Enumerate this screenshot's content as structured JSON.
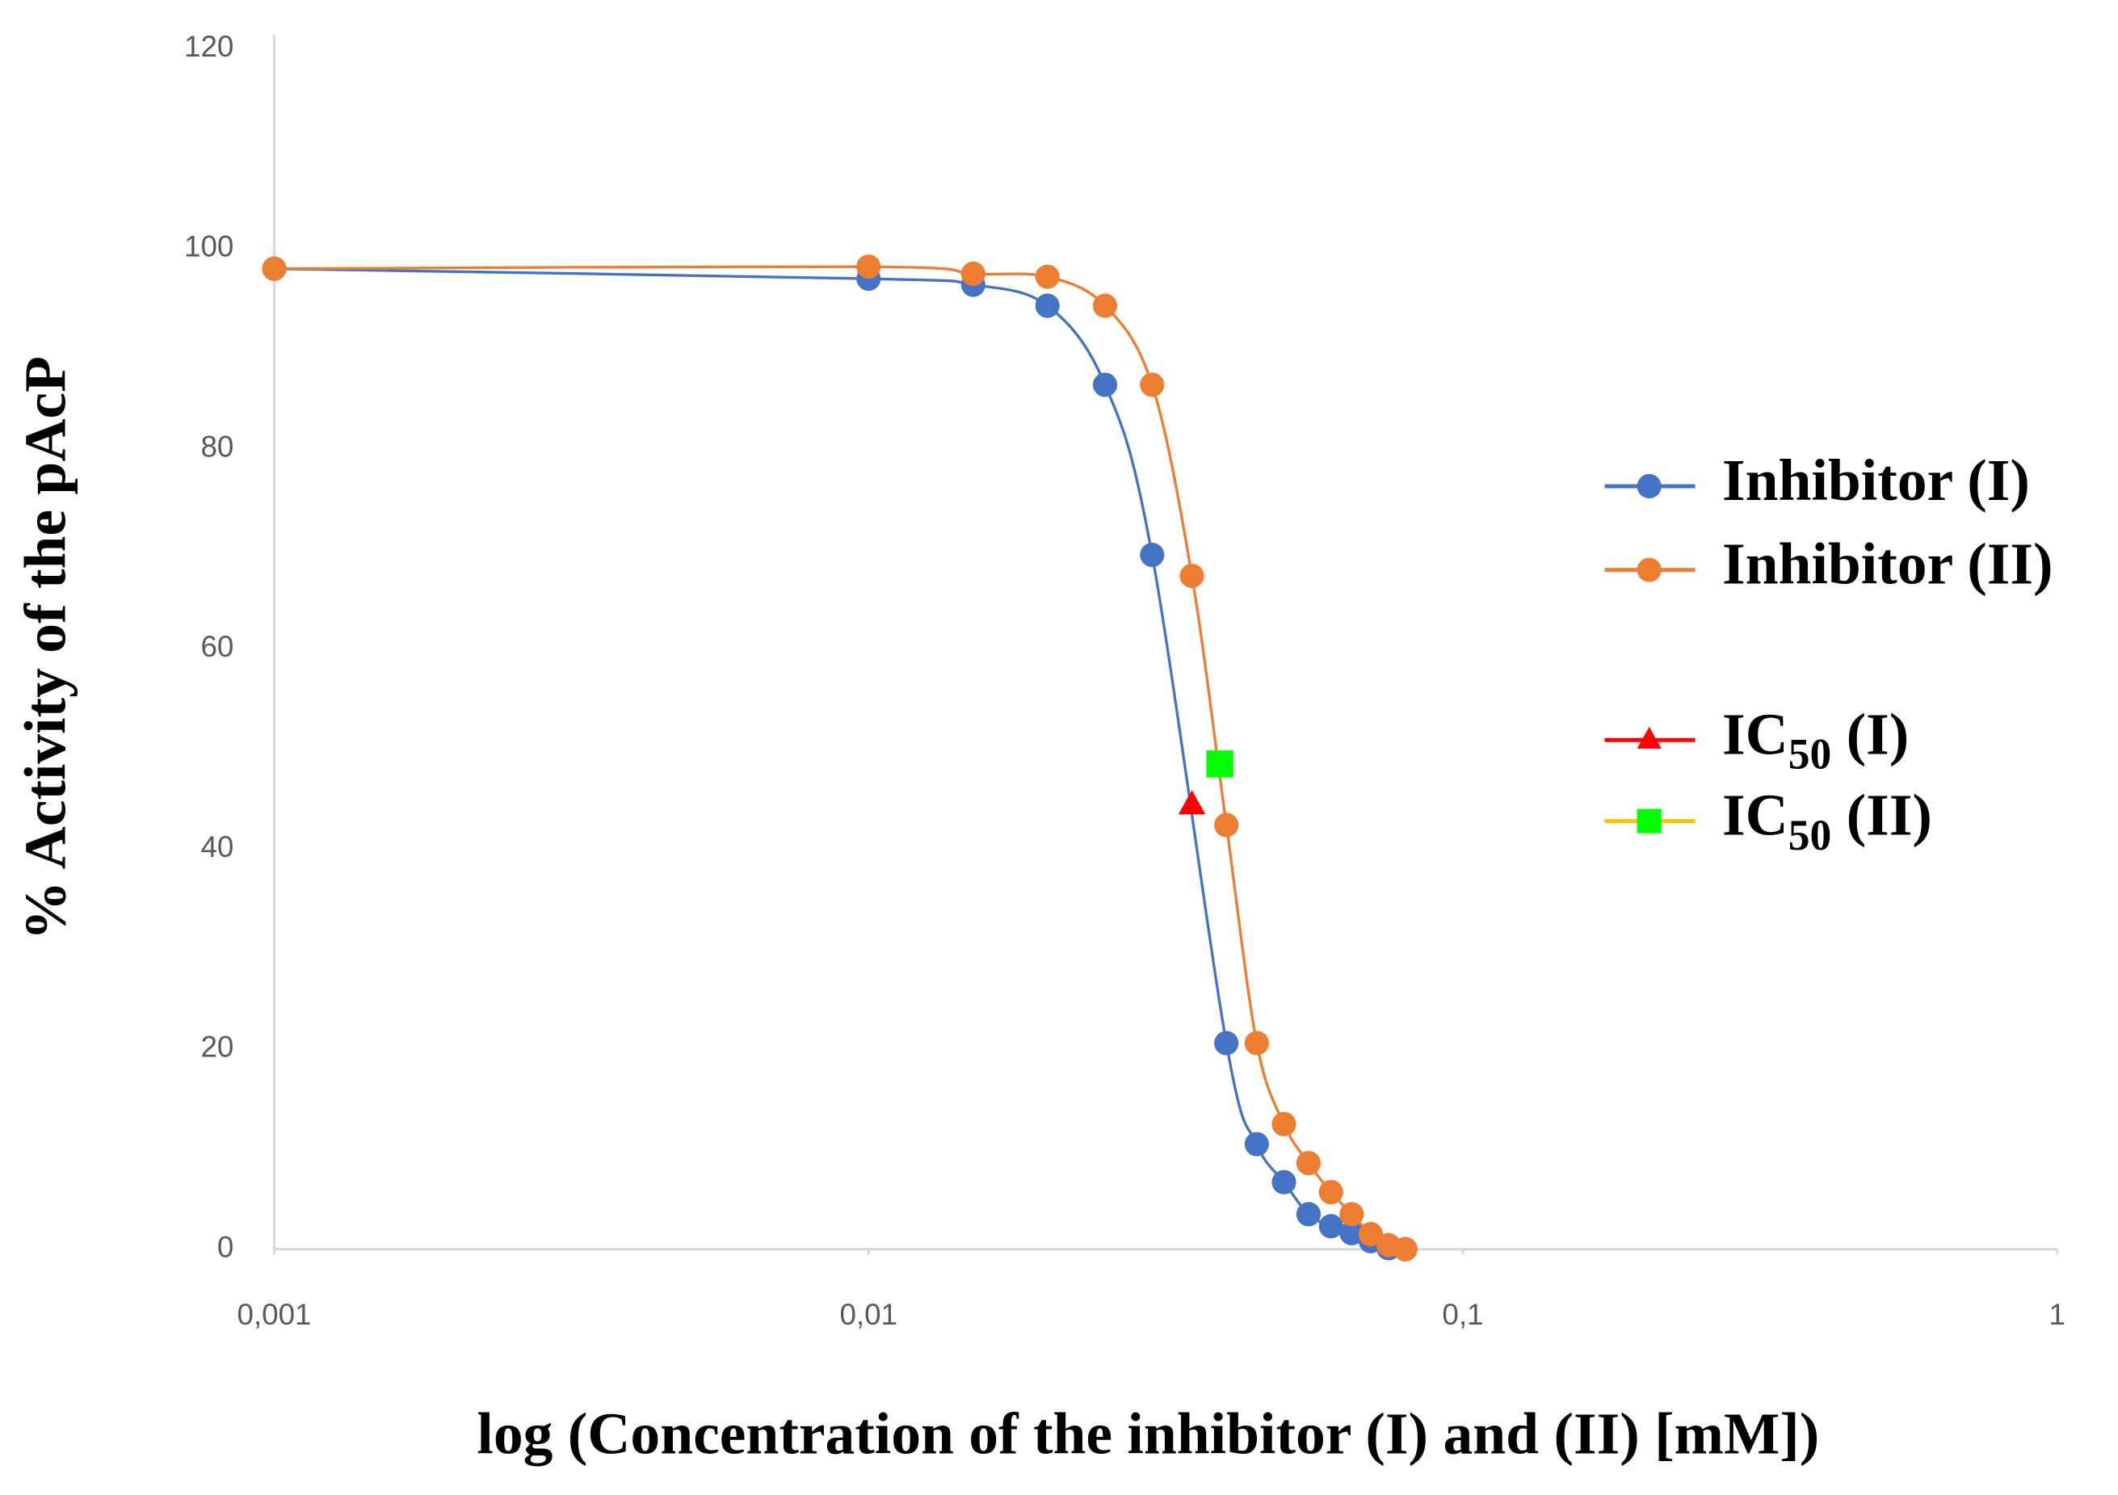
{
  "chart_data": {
    "type": "line",
    "x_label": "log (Concentration of the inhibitor (I) and (II) [mM])",
    "y_label": "% Activity of the pAcP",
    "x_scale": "log",
    "xlim": [
      0.001,
      1
    ],
    "xticks": [
      {
        "value": 0.001,
        "label": "0,001"
      },
      {
        "value": 0.01,
        "label": "0,01"
      },
      {
        "value": 0.1,
        "label": "0,1"
      },
      1
    ],
    "ylim": [
      0,
      120
    ],
    "yticks": [
      0,
      20,
      40,
      60,
      80,
      100,
      120
    ],
    "grid": false,
    "legend": "right",
    "series": [
      {
        "name": "Inhibitor (I)",
        "color": "#4472c4",
        "marker": "circle",
        "marker_color": "#4472c4",
        "x": [
          0.001,
          0.01,
          0.015,
          0.02,
          0.025,
          0.03,
          0.04,
          0.045,
          0.05,
          0.055,
          0.06,
          0.065,
          0.07,
          0.075,
          0.08
        ],
        "values": [
          98,
          97,
          96.4,
          94.3,
          86.4,
          69.4,
          20.6,
          10.5,
          6.7,
          3.5,
          2.3,
          1.6,
          0.8,
          0.1,
          0
        ]
      },
      {
        "name": "Inhibitor (II)",
        "color": "#ed7d31",
        "marker": "circle",
        "marker_color": "#ed7d31",
        "x": [
          0.001,
          0.01,
          0.015,
          0.02,
          0.025,
          0.03,
          0.035,
          0.04,
          0.045,
          0.05,
          0.055,
          0.06,
          0.065,
          0.07,
          0.075,
          0.08
        ],
        "values": [
          98,
          98.2,
          97.5,
          97.2,
          94.3,
          86.4,
          67.3,
          42.4,
          20.6,
          12.5,
          8.6,
          5.7,
          3.5,
          1.5,
          0.4,
          0
        ]
      },
      {
        "name": "IC50 (I)",
        "color": "#ff0000",
        "marker": "triangle",
        "marker_color": "#ff0000",
        "x": [
          0.035
        ],
        "values": [
          44.4
        ]
      },
      {
        "name": "IC50 (II)",
        "color": "#ffc000",
        "marker": "square",
        "marker_color": "#00ff00",
        "x": [
          0.039
        ],
        "values": [
          48.5
        ]
      }
    ]
  }
}
